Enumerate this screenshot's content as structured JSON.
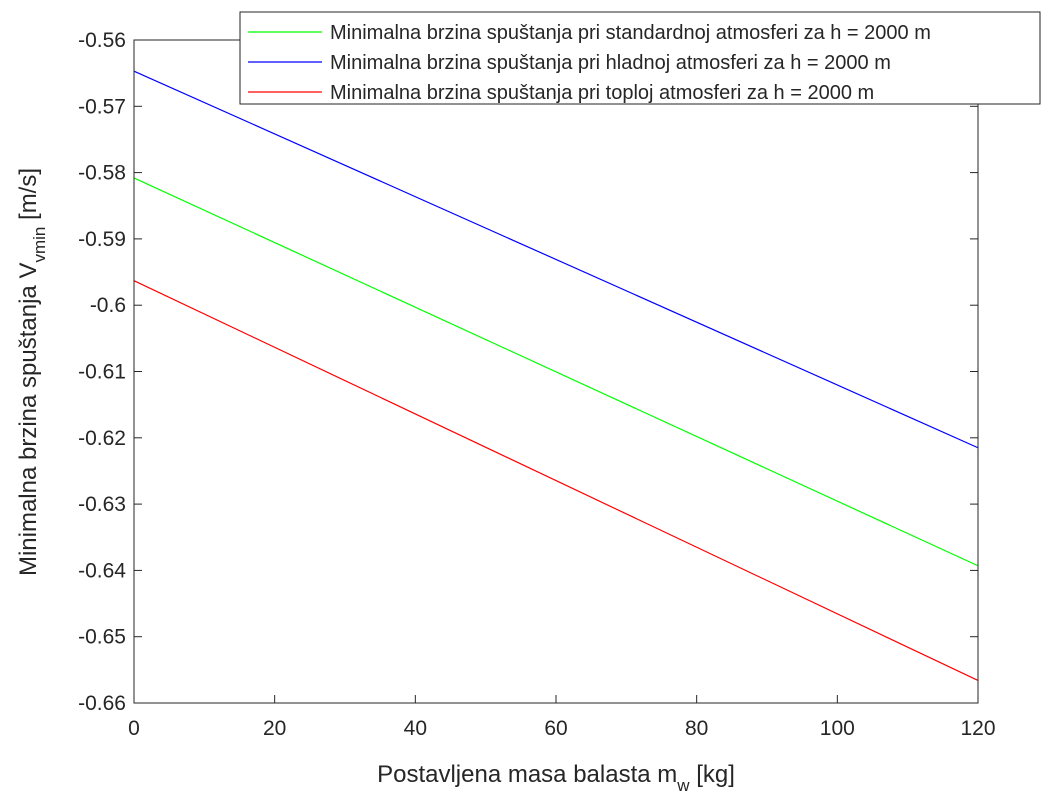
{
  "chart_data": {
    "type": "line",
    "title": "",
    "xlabel": {
      "main": "Postavljena masa balasta m",
      "sub": "w",
      "tail": " [kg]"
    },
    "ylabel": {
      "main": "Minimalna brzina spuštanja V",
      "sub": "vmin",
      "tail": " [m/s]"
    },
    "xlim": [
      0,
      120
    ],
    "ylim": [
      -0.66,
      -0.56
    ],
    "xticks": [
      0,
      20,
      40,
      60,
      80,
      100,
      120
    ],
    "xtick_labels": [
      "0",
      "20",
      "40",
      "60",
      "80",
      "100",
      "120"
    ],
    "yticks": [
      -0.56,
      -0.57,
      -0.58,
      -0.59,
      -0.6,
      -0.61,
      -0.62,
      -0.63,
      -0.64,
      -0.65,
      -0.66
    ],
    "ytick_labels": [
      "-0.56",
      "-0.57",
      "-0.58",
      "-0.59",
      "-0.6",
      "-0.61",
      "-0.62",
      "-0.63",
      "-0.64",
      "-0.65",
      "-0.66"
    ],
    "grid": false,
    "legend_position": "top-right",
    "series": [
      {
        "name": "Minimalna brzina spuštanja pri standardnoj atmosferi za h = 2000 m",
        "color": "#00ff00",
        "x": [
          0,
          120
        ],
        "y": [
          -0.5808,
          -0.6393
        ]
      },
      {
        "name": "Minimalna brzina spuštanja pri hladnoj atmosferi za h = 2000 m",
        "color": "#0000ff",
        "x": [
          0,
          120
        ],
        "y": [
          -0.5647,
          -0.6215
        ]
      },
      {
        "name": "Minimalna brzina spuštanja pri toploj atmosferi za h = 2000 m",
        "color": "#ff0000",
        "x": [
          0,
          120
        ],
        "y": [
          -0.5963,
          -0.6566
        ]
      }
    ]
  }
}
